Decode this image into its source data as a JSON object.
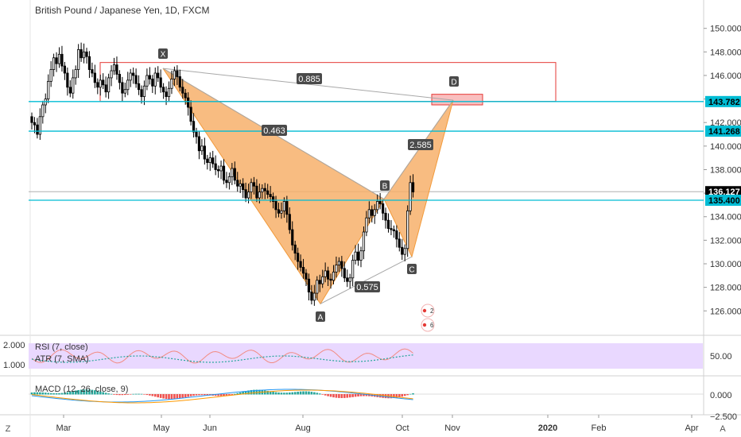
{
  "header": {
    "title": "British Pound / Japanese Yen, 1D, FXCM"
  },
  "price_axis": {
    "ticks": [
      "150.000",
      "148.000",
      "146.000",
      "144.000",
      "142.000",
      "140.000",
      "138.000",
      "136.000",
      "134.000",
      "132.000",
      "130.000",
      "128.000",
      "126.000"
    ],
    "tick_values": [
      150,
      148,
      146,
      144,
      142,
      140,
      138,
      136,
      134,
      132,
      130,
      128,
      126
    ],
    "labels": [
      {
        "text": "143.782",
        "value": 143.782,
        "color": "#00bcd4",
        "text_color": "#000000"
      },
      {
        "text": "141.268",
        "value": 141.268,
        "color": "#00bcd4",
        "text_color": "#000000"
      },
      {
        "text": "136.127",
        "value": 136.127,
        "color": "#000000",
        "text_color": "#ffffff"
      },
      {
        "text": "135.400",
        "value": 135.4,
        "color": "#00bcd4",
        "text_color": "#000000"
      }
    ]
  },
  "time_axis": {
    "labels": [
      "Mar",
      "May",
      "Jun",
      "Aug",
      "Oct",
      "Nov",
      "2020",
      "Feb",
      "Apr"
    ]
  },
  "indicators": {
    "rsi_label": "RSI (7, close)",
    "atr_label": "ATR (7, SMA)",
    "macd_label": "MACD (12, 26, close, 9)",
    "rsi_left_ticks": [
      "2.000",
      "1.000"
    ],
    "rsi_right_ticks": [
      "50.00"
    ],
    "macd_ticks": [
      "0.000",
      "−2.500"
    ]
  },
  "pattern_labels": {
    "X": "X",
    "A": "A",
    "B": "B",
    "C": "C",
    "D": "D",
    "r1": "0.885",
    "r2": "0.463",
    "r3": "0.575",
    "r4": "2.585"
  },
  "corner": {
    "left": "Z",
    "right": "A"
  },
  "event_badges": [
    "2",
    "6"
  ],
  "colors": {
    "pattern_fill": "#f7b06b",
    "horizontal_line": "#00bcd4",
    "zone_border": "#e53935",
    "up_candle": "#ffffff",
    "down_candle": "#000000",
    "rsi_band": "#e9d8ff",
    "macd_pos": "#26a69a",
    "macd_neg": "#ef5350"
  },
  "chart_data": {
    "type": "candlestick",
    "title": "British Pound / Japanese Yen, 1D, FXCM",
    "ylim": [
      124.6,
      151.6
    ],
    "price_lines": [
      143.782,
      141.268,
      135.4
    ],
    "last_price": 136.127,
    "rectangles": [
      {
        "label": "upper zone",
        "top": 147.1,
        "bottom": 143.8
      },
      {
        "label": "D zone",
        "top": 144.4,
        "bottom": 143.5
      }
    ],
    "harmonic_points": [
      {
        "name": "X",
        "price": 146.6
      },
      {
        "name": "A",
        "price": 126.6
      },
      {
        "name": "B",
        "price": 135.5
      },
      {
        "name": "C",
        "price": 130.6
      },
      {
        "name": "D",
        "price": 143.9
      }
    ],
    "ratios": [
      0.885,
      0.463,
      0.575,
      2.585
    ],
    "closes": [
      142.0,
      141.8,
      141.0,
      142.5,
      143.5,
      144.0,
      145.5,
      146.5,
      147.5,
      147.0,
      147.8,
      146.8,
      146.2,
      145.0,
      144.5,
      145.8,
      146.5,
      148.2,
      147.5,
      148.0,
      147.6,
      146.5,
      146.2,
      145.4,
      145.0,
      145.6,
      145.2,
      144.6,
      145.8,
      146.4,
      146.9,
      146.1,
      145.4,
      144.5,
      144.8,
      145.6,
      146.2,
      146.0,
      145.3,
      144.8,
      144.2,
      145.1,
      146.0,
      145.7,
      145.1,
      146.2,
      145.8,
      145.0,
      144.6,
      144.2,
      144.9,
      145.7,
      146.4,
      145.9,
      145.0,
      144.5,
      144.1,
      143.3,
      142.1,
      141.2,
      140.8,
      139.6,
      140.0,
      138.9,
      138.6,
      139.0,
      138.5,
      138.0,
      137.9,
      138.3,
      137.1,
      136.9,
      137.4,
      138.1,
      137.1,
      136.6,
      136.8,
      136.3,
      135.6,
      136.1,
      136.9,
      136.6,
      135.6,
      136.1,
      136.4,
      136.2,
      135.9,
      135.7,
      135.3,
      134.6,
      134.3,
      134.5,
      135.3,
      134.2,
      132.9,
      131.6,
      130.9,
      130.2,
      129.7,
      129.2,
      128.7,
      127.6,
      126.9,
      127.5,
      128.6,
      128.3,
      128.9,
      129.4,
      128.7,
      128.6,
      129.3,
      129.9,
      130.2,
      129.6,
      128.8,
      128.5,
      128.8,
      130.3,
      131.0,
      130.3,
      131.1,
      132.7,
      133.9,
      134.6,
      134.1,
      134.6,
      135.3,
      135.1,
      134.3,
      133.7,
      133.0,
      132.9,
      132.8,
      132.1,
      131.4,
      130.8,
      131.3,
      134.5,
      136.9,
      136.1
    ]
  }
}
